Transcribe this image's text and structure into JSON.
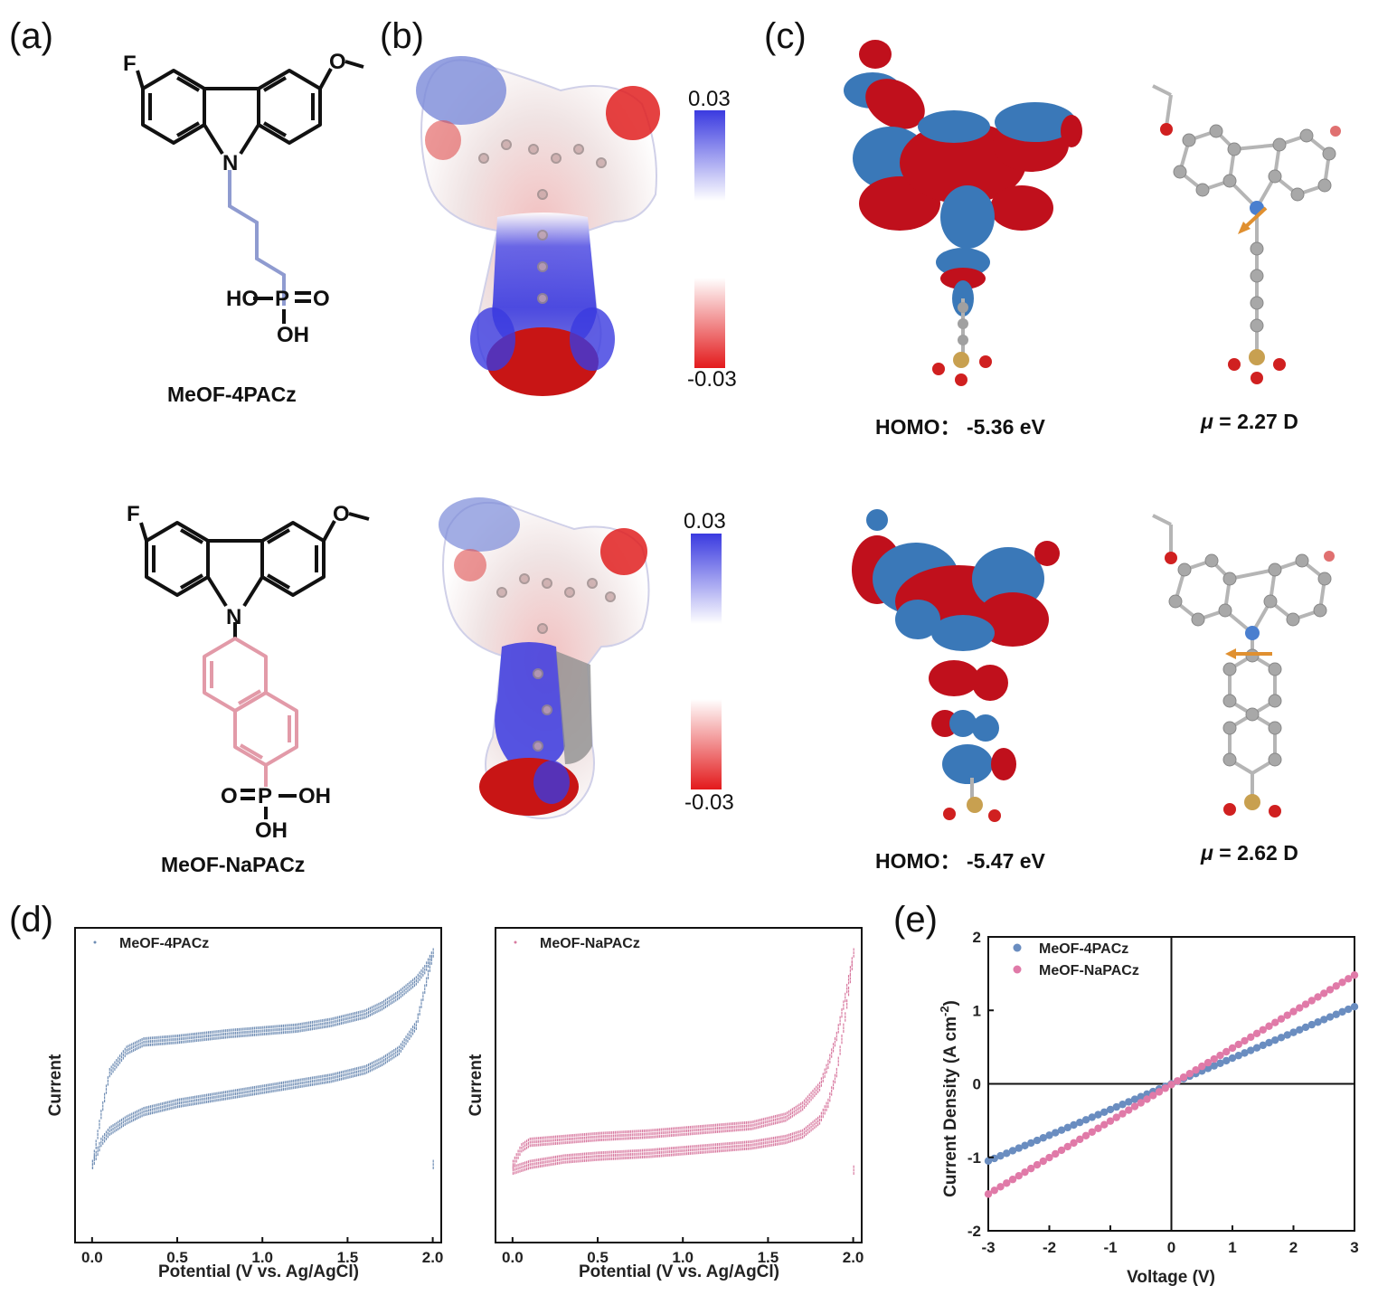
{
  "panel_labels": {
    "a": "(a)",
    "b": "(b)",
    "c": "(c)",
    "d": "(d)",
    "e": "(e)"
  },
  "molecules": {
    "top": {
      "name": "MeOF-4PACz",
      "atoms": {
        "F": "F",
        "O": "O",
        "N": "N",
        "P": "P",
        "HO": "HO",
        "OH": "OH",
        "O_dbl": "O"
      },
      "homo": "HOMO：  -5.36 eV",
      "dipole_mu": "μ",
      "dipole_value": " = 2.27 D",
      "linker_color": "#8f9bd0"
    },
    "bottom": {
      "name": "MeOF-NaPACz",
      "atoms": {
        "F": "F",
        "O": "O",
        "N": "N",
        "P": "P",
        "O_dbl": "O",
        "OH1": "OH",
        "OH2": "OH"
      },
      "homo": "HOMO：  -5.47 eV",
      "dipole_mu": "μ",
      "dipole_value": " = 2.62 D",
      "linker_color": "#e29aa8"
    }
  },
  "esp_scale": {
    "max": "0.03",
    "min": "-0.03",
    "colors": {
      "positive": "#3a3ae0",
      "negative": "#e31a1c"
    }
  },
  "orbital_colors": {
    "phase1": "#c0101c",
    "phase2": "#3a78b8",
    "carbon": "#9a9a9a",
    "nitrogen": "#4a7fcf",
    "oxygen": "#d02020",
    "phosphorus": "#c8a050"
  },
  "chart_data": [
    {
      "id": "d-left",
      "type": "scatter",
      "title": "",
      "legend": "MeOF-4PACz",
      "xlabel": "Potential (V vs. Ag/AgCl)",
      "ylabel": "Current",
      "xlim": [
        -0.1,
        2.05
      ],
      "xticks": [
        "0.0",
        "0.5",
        "1.0",
        "1.5",
        "2.0"
      ],
      "color": "#6f8db4",
      "description_series": [
        {
          "name": "forward",
          "x": [
            0.0,
            0.05,
            0.1,
            0.2,
            0.3,
            0.5,
            0.8,
            1.0,
            1.2,
            1.4,
            1.6,
            1.7,
            1.8,
            1.9,
            1.95,
            2.0
          ],
          "y": [
            0.22,
            0.4,
            0.55,
            0.63,
            0.66,
            0.67,
            0.69,
            0.7,
            0.71,
            0.73,
            0.76,
            0.79,
            0.83,
            0.88,
            0.92,
            0.98
          ]
        },
        {
          "name": "reverse",
          "x": [
            2.0,
            1.9,
            1.8,
            1.7,
            1.6,
            1.4,
            1.2,
            1.0,
            0.8,
            0.5,
            0.3,
            0.2,
            0.1,
            0.05,
            0.0
          ],
          "y": [
            0.98,
            0.72,
            0.63,
            0.59,
            0.56,
            0.53,
            0.51,
            0.49,
            0.47,
            0.44,
            0.41,
            0.38,
            0.34,
            0.3,
            0.22
          ]
        }
      ]
    },
    {
      "id": "d-right",
      "type": "scatter",
      "title": "",
      "legend": "MeOF-NaPACz",
      "xlabel": "Potential (V vs. Ag/AgCl)",
      "ylabel": "Current",
      "xlim": [
        -0.1,
        2.05
      ],
      "xticks": [
        "0.0",
        "0.5",
        "1.0",
        "1.5",
        "2.0"
      ],
      "color": "#d87aa0",
      "description_series": [
        {
          "name": "forward",
          "x": [
            0.0,
            0.05,
            0.1,
            0.3,
            0.5,
            0.8,
            1.0,
            1.2,
            1.4,
            1.6,
            1.7,
            1.8,
            1.85,
            1.9,
            1.95,
            2.0
          ],
          "y": [
            0.22,
            0.28,
            0.3,
            0.31,
            0.32,
            0.33,
            0.34,
            0.35,
            0.36,
            0.39,
            0.43,
            0.5,
            0.58,
            0.68,
            0.82,
            0.98
          ]
        },
        {
          "name": "reverse",
          "x": [
            2.0,
            1.95,
            1.9,
            1.85,
            1.8,
            1.7,
            1.6,
            1.4,
            1.2,
            1.0,
            0.8,
            0.5,
            0.3,
            0.1,
            0.05,
            0.0
          ],
          "y": [
            0.98,
            0.75,
            0.55,
            0.44,
            0.38,
            0.33,
            0.31,
            0.29,
            0.28,
            0.27,
            0.26,
            0.25,
            0.24,
            0.22,
            0.21,
            0.2
          ]
        }
      ]
    },
    {
      "id": "e",
      "type": "scatter",
      "title": "",
      "xlabel": "Voltage (V)",
      "ylabel": "Current Density (A cm",
      "ylabel_sup": "-2",
      "ylabel_end": ")",
      "xlim": [
        -3,
        3
      ],
      "ylim": [
        -2,
        2
      ],
      "xticks": [
        "-3",
        "-2",
        "-1",
        "0",
        "1",
        "2",
        "3"
      ],
      "yticks": [
        "2",
        "1",
        "0",
        "-1",
        "-2"
      ],
      "series": [
        {
          "name": "MeOF-4PACz",
          "color": "#6a8dc0",
          "slope": 0.35,
          "x": [
            -3,
            3
          ],
          "y": [
            -1.05,
            1.05
          ]
        },
        {
          "name": "MeOF-NaPACz",
          "color": "#e07aa8",
          "slope": 0.49,
          "x": [
            -3,
            3
          ],
          "y": [
            -1.5,
            1.48
          ]
        }
      ]
    }
  ]
}
